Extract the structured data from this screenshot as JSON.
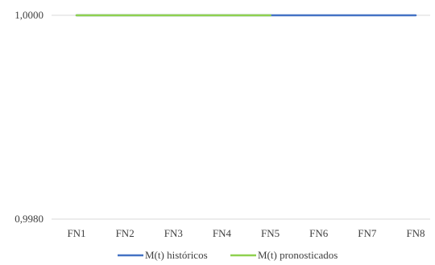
{
  "chart_data": {
    "type": "line",
    "title": "",
    "xlabel": "",
    "ylabel": "",
    "categories": [
      "FN1",
      "FN2",
      "FN3",
      "FN4",
      "FN5",
      "FN6",
      "FN7",
      "FN8"
    ],
    "ylim": [
      0.998,
      1.0
    ],
    "y_tick_labels": [
      "1,0000",
      "0,9980"
    ],
    "grid": true,
    "legend_position": "bottom",
    "series": [
      {
        "name": "M(t) históricos",
        "color": "#4472C4",
        "x": [
          "FN1",
          "FN2",
          "FN3",
          "FN4",
          "FN5",
          "FN6",
          "FN7",
          "FN8"
        ],
        "values": [
          1.0,
          1.0,
          1.0,
          1.0,
          1.0,
          1.0,
          1.0,
          1.0
        ]
      },
      {
        "name": "M(t) pronosticados",
        "color": "#8FD14F",
        "x": [
          "FN1",
          "FN2",
          "FN3",
          "FN4",
          "FN5"
        ],
        "values": [
          1.0,
          1.0,
          1.0,
          1.0,
          1.0
        ]
      }
    ]
  }
}
